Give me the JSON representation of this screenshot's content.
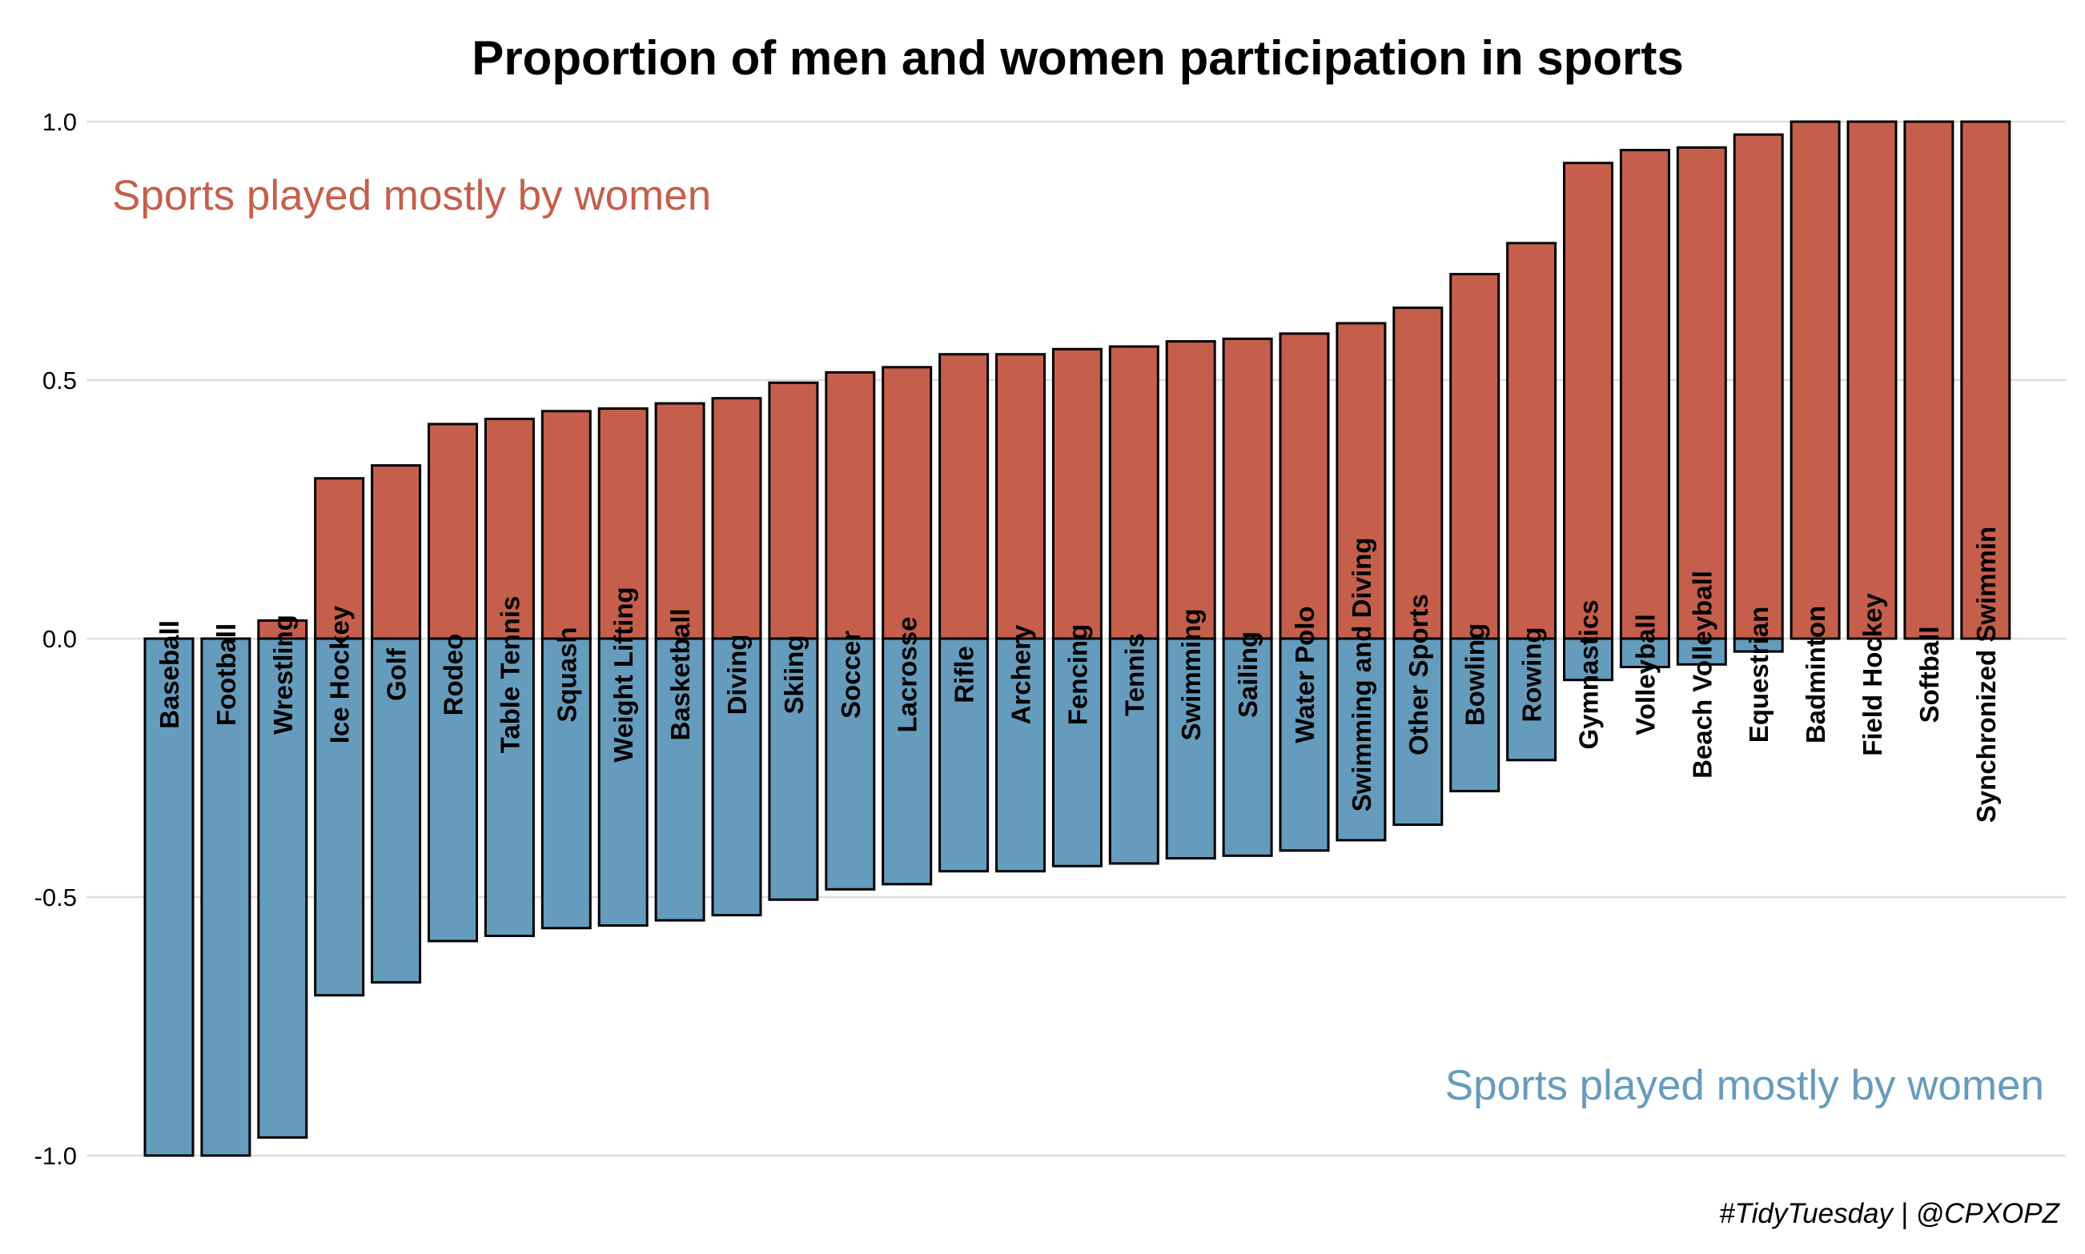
{
  "chart_data": {
    "type": "bar",
    "title": "Proportion of men and women participation in sports",
    "xlabel": "",
    "ylabel": "",
    "ylim": [
      -1.0,
      1.0
    ],
    "yticks": [
      {
        "value": 1.0,
        "label": "1.0"
      },
      {
        "value": 0.5,
        "label": "0.5"
      },
      {
        "value": 0.0,
        "label": "0.0"
      },
      {
        "value": -0.5,
        "label": "-0.5"
      },
      {
        "value": -1.0,
        "label": "-1.0"
      }
    ],
    "grid": "horizontal",
    "colors": {
      "women": "#c55f4b",
      "men": "#659cbd",
      "outline": "#000000",
      "grid": "#dddddd"
    },
    "categories": [
      "Baseball",
      "Football",
      "Wrestling",
      "Ice Hockey",
      "Golf",
      "Rodeo",
      "Table Tennis",
      "Squash",
      "Weight Lifting",
      "Basketball",
      "Diving",
      "Skiing",
      "Soccer",
      "Lacrosse",
      "Rifle",
      "Archery",
      "Fencing",
      "Tennis",
      "Swimming",
      "Sailing",
      "Water Polo",
      "Swimming and Diving",
      "Other Sports",
      "Bowling",
      "Rowing",
      "Gymnastics",
      "Volleyball",
      "Beach Volleyball",
      "Equestrian",
      "Badminton",
      "Field Hockey",
      "Softball",
      "Synchronized Swimmin"
    ],
    "series": [
      {
        "key": "women",
        "values": [
          0.0,
          0.0,
          0.035,
          0.31,
          0.335,
          0.415,
          0.425,
          0.44,
          0.445,
          0.455,
          0.465,
          0.495,
          0.515,
          0.525,
          0.55,
          0.55,
          0.56,
          0.565,
          0.575,
          0.58,
          0.59,
          0.61,
          0.64,
          0.705,
          0.765,
          0.92,
          0.945,
          0.95,
          0.975,
          1.0,
          1.0,
          1.0,
          1.0
        ]
      },
      {
        "key": "men",
        "values": [
          -1.0,
          -1.0,
          -0.965,
          -0.69,
          -0.665,
          -0.585,
          -0.575,
          -0.56,
          -0.555,
          -0.545,
          -0.535,
          -0.505,
          -0.485,
          -0.475,
          -0.45,
          -0.45,
          -0.44,
          -0.435,
          -0.425,
          -0.42,
          -0.41,
          -0.39,
          -0.36,
          -0.295,
          -0.235,
          -0.08,
          -0.055,
          -0.05,
          -0.025,
          0.0,
          0.0,
          0.0,
          0.0
        ]
      }
    ],
    "annotations": [
      {
        "text": "Sports played mostly by women",
        "position": "top-left",
        "color": "#c55f4b"
      },
      {
        "text": "Sports played mostly by women",
        "position": "bottom-right",
        "color": "#659cbd"
      }
    ],
    "caption": "#TidyTuesday | @CPXOPZ"
  }
}
